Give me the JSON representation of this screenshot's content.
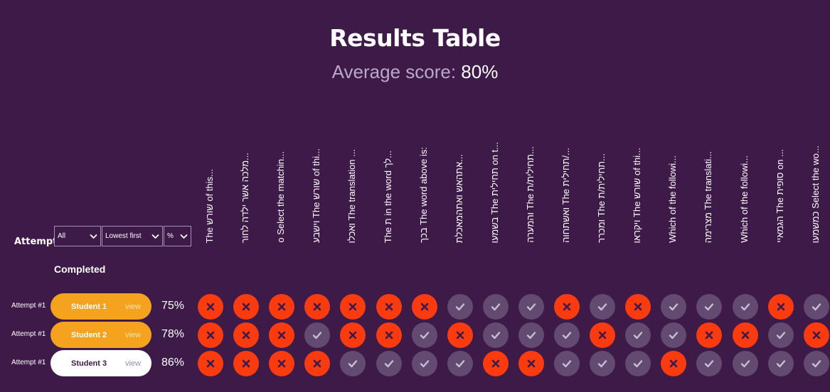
{
  "page": {
    "title": "Results Table",
    "average_label": "Average score:",
    "average_value": "80%"
  },
  "filters": {
    "attempt_label": "Attempt",
    "attempt_select": "All",
    "order_select": "Lowest first",
    "unit_select": "%",
    "completed_label": "Completed"
  },
  "questions": [
    "The שורש of this...",
    "מלכה אשר ילדה לחור...",
    "o Select the matchin...",
    "וישבע The שורש of thi...",
    "ואכלו The translation ...",
    "The ת in the word לך...",
    "בכך The word above is:",
    "אתהאש ואתהמאכלת...",
    "בשמעו The תחילית on t...",
    "והמערה The תחילית/ת...",
    "ואשתחוה The תחילית/...",
    "ומכרר The תחילית/ת...",
    "ויקראו The שורש of thi...",
    "Which of the followi...",
    "מצרימה The translati...",
    "Which of the followi...",
    "הגמאיי The סופית on ...",
    "כמשמעו Select the wo..."
  ],
  "students": [
    {
      "attempt": "Attempt #1",
      "name": "Student 1",
      "view": "view",
      "score": "75%",
      "style": "orange",
      "answers": [
        "wrong",
        "wrong",
        "wrong",
        "wrong",
        "wrong",
        "wrong",
        "wrong",
        "right",
        "right",
        "right",
        "wrong",
        "right",
        "wrong",
        "right",
        "right",
        "right",
        "wrong",
        "right"
      ]
    },
    {
      "attempt": "Attempt #1",
      "name": "Student 2",
      "view": "view",
      "score": "78%",
      "style": "orange",
      "answers": [
        "wrong",
        "wrong",
        "wrong",
        "right",
        "wrong",
        "wrong",
        "right",
        "wrong",
        "right",
        "right",
        "right",
        "wrong",
        "right",
        "right",
        "wrong",
        "wrong",
        "right",
        "wrong"
      ]
    },
    {
      "attempt": "Attempt #1",
      "name": "Student 3",
      "view": "view",
      "score": "86%",
      "style": "white",
      "answers": [
        "wrong",
        "wrong",
        "wrong",
        "wrong",
        "right",
        "right",
        "right",
        "right",
        "wrong",
        "wrong",
        "right",
        "right",
        "right",
        "wrong",
        "right",
        "right",
        "right",
        "right"
      ]
    }
  ],
  "colors": {
    "background": "#3d1a48",
    "wrong": "#fa3b10",
    "right": "#634a70",
    "highlight_pill": "#f5a31f"
  },
  "icons": {
    "wrong": "x-icon",
    "right": "check-icon",
    "select": "chevron-down-icon"
  }
}
